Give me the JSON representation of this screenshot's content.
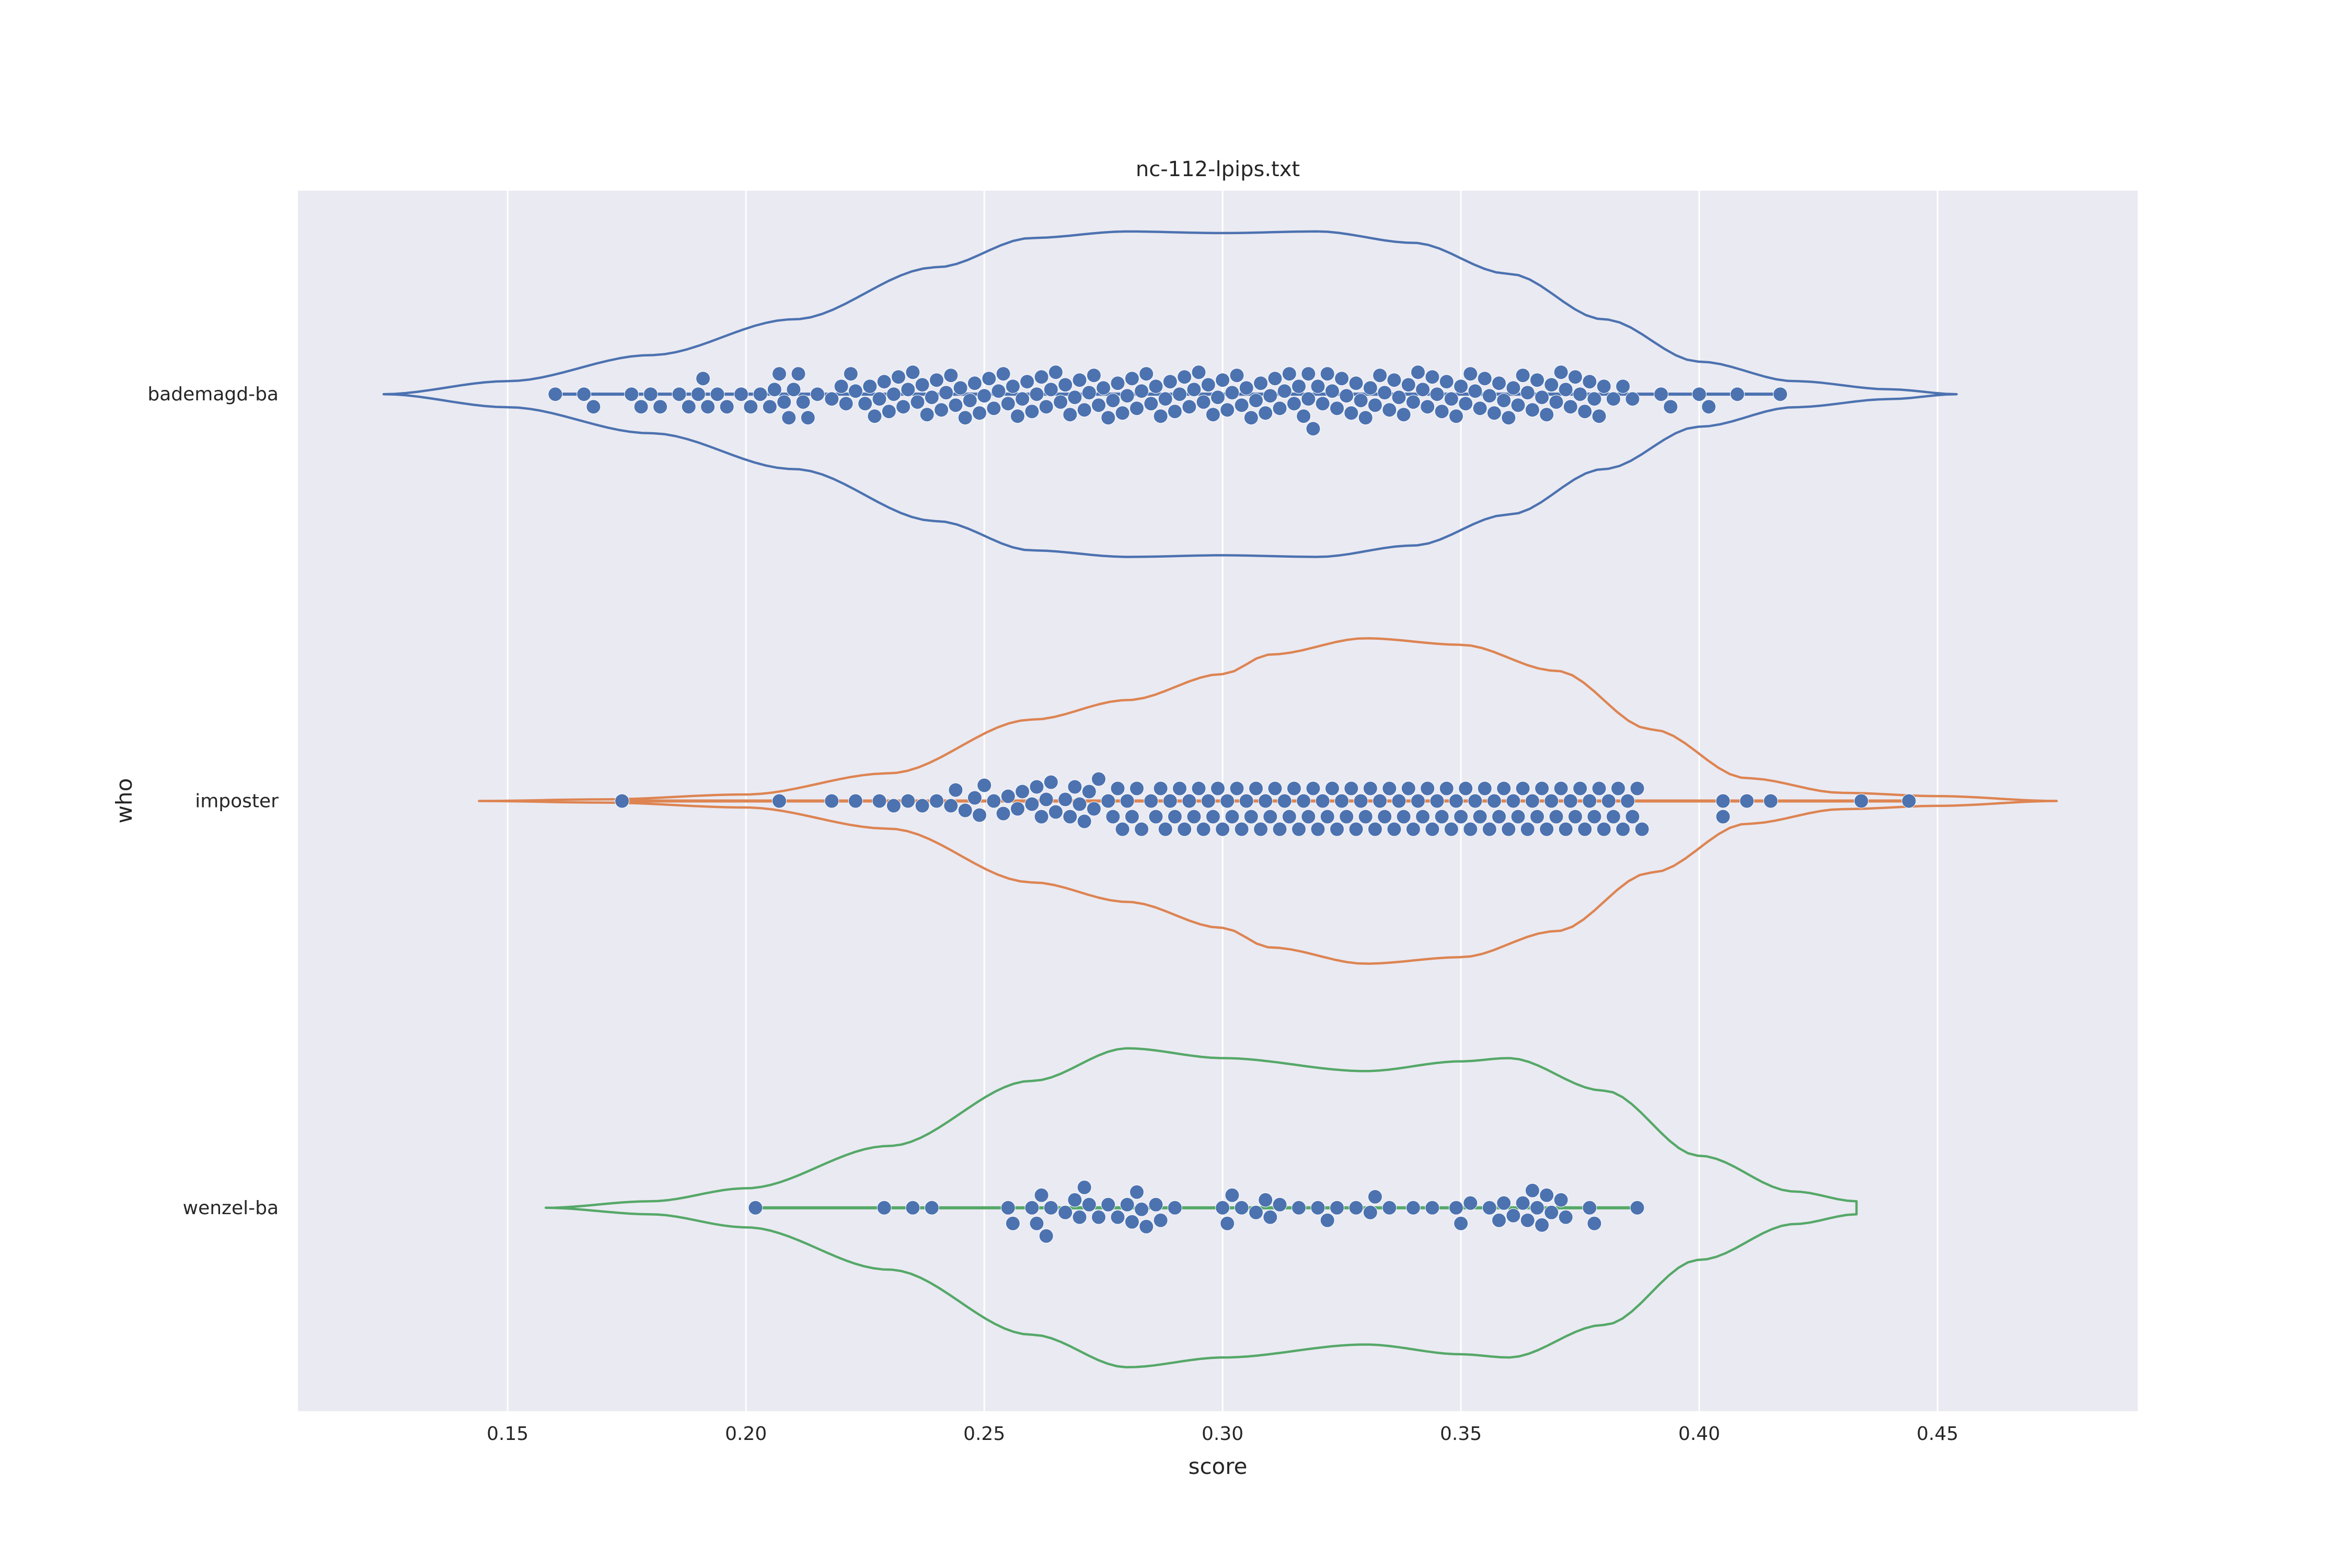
{
  "chart_data": {
    "type": "violin",
    "title": "nc-112-lpips.txt",
    "xlabel": "score",
    "ylabel": "who",
    "xlim": [
      0.106,
      0.492
    ],
    "xticks": [
      0.15,
      0.2,
      0.25,
      0.3,
      0.35,
      0.4,
      0.45
    ],
    "xtick_labels": [
      "0.15",
      "0.20",
      "0.25",
      "0.30",
      "0.35",
      "0.40",
      "0.45"
    ],
    "grid": true,
    "background": "#eaeaf2",
    "point_color": "#4c72b0",
    "categories": [
      "bademagd-ba",
      "imposter",
      "wenzel-ba"
    ],
    "series": [
      {
        "name": "bademagd-ba",
        "color": "#4c72b0",
        "violin_range": [
          0.124,
          0.454
        ],
        "density": [
          [
            0.124,
            0.0
          ],
          [
            0.15,
            0.08
          ],
          [
            0.18,
            0.24
          ],
          [
            0.21,
            0.46
          ],
          [
            0.24,
            0.78
          ],
          [
            0.26,
            0.96
          ],
          [
            0.28,
            1.0
          ],
          [
            0.3,
            0.99
          ],
          [
            0.32,
            1.0
          ],
          [
            0.34,
            0.93
          ],
          [
            0.36,
            0.74
          ],
          [
            0.38,
            0.46
          ],
          [
            0.4,
            0.2
          ],
          [
            0.42,
            0.08
          ],
          [
            0.44,
            0.03
          ],
          [
            0.454,
            0.0
          ]
        ],
        "points": [
          0.16,
          0.166,
          0.168,
          0.176,
          0.178,
          0.18,
          0.182,
          0.186,
          0.188,
          0.19,
          0.191,
          0.192,
          0.194,
          0.196,
          0.199,
          0.201,
          0.203,
          0.205,
          0.206,
          0.207,
          0.208,
          0.209,
          0.21,
          0.211,
          0.212,
          0.213,
          0.215,
          0.218,
          0.22,
          0.221,
          0.222,
          0.223,
          0.225,
          0.226,
          0.227,
          0.228,
          0.229,
          0.23,
          0.231,
          0.232,
          0.233,
          0.234,
          0.235,
          0.236,
          0.237,
          0.238,
          0.239,
          0.24,
          0.241,
          0.242,
          0.243,
          0.244,
          0.245,
          0.246,
          0.247,
          0.248,
          0.249,
          0.25,
          0.251,
          0.252,
          0.253,
          0.254,
          0.255,
          0.256,
          0.257,
          0.258,
          0.259,
          0.26,
          0.261,
          0.262,
          0.263,
          0.264,
          0.265,
          0.266,
          0.267,
          0.268,
          0.269,
          0.27,
          0.271,
          0.272,
          0.273,
          0.274,
          0.275,
          0.276,
          0.277,
          0.278,
          0.279,
          0.28,
          0.281,
          0.282,
          0.283,
          0.284,
          0.285,
          0.286,
          0.287,
          0.288,
          0.289,
          0.29,
          0.291,
          0.292,
          0.293,
          0.294,
          0.295,
          0.296,
          0.297,
          0.298,
          0.299,
          0.3,
          0.301,
          0.302,
          0.303,
          0.304,
          0.305,
          0.306,
          0.307,
          0.308,
          0.309,
          0.31,
          0.311,
          0.312,
          0.313,
          0.314,
          0.315,
          0.316,
          0.317,
          0.318,
          0.318,
          0.319,
          0.32,
          0.321,
          0.322,
          0.323,
          0.324,
          0.325,
          0.326,
          0.327,
          0.328,
          0.329,
          0.33,
          0.331,
          0.332,
          0.333,
          0.334,
          0.335,
          0.336,
          0.337,
          0.338,
          0.339,
          0.34,
          0.341,
          0.342,
          0.343,
          0.344,
          0.345,
          0.346,
          0.347,
          0.348,
          0.349,
          0.35,
          0.351,
          0.352,
          0.353,
          0.354,
          0.355,
          0.356,
          0.357,
          0.358,
          0.359,
          0.36,
          0.361,
          0.362,
          0.363,
          0.364,
          0.365,
          0.366,
          0.367,
          0.368,
          0.369,
          0.37,
          0.371,
          0.372,
          0.373,
          0.374,
          0.375,
          0.376,
          0.377,
          0.378,
          0.379,
          0.38,
          0.382,
          0.384,
          0.386,
          0.392,
          0.394,
          0.4,
          0.402,
          0.408,
          0.417
        ]
      },
      {
        "name": "imposter",
        "color": "#dd8452",
        "violin_range": [
          0.144,
          0.475
        ],
        "density": [
          [
            0.144,
            0.0
          ],
          [
            0.17,
            0.01
          ],
          [
            0.2,
            0.04
          ],
          [
            0.23,
            0.17
          ],
          [
            0.26,
            0.5
          ],
          [
            0.28,
            0.62
          ],
          [
            0.3,
            0.78
          ],
          [
            0.31,
            0.9
          ],
          [
            0.33,
            1.0
          ],
          [
            0.35,
            0.96
          ],
          [
            0.37,
            0.8
          ],
          [
            0.39,
            0.44
          ],
          [
            0.41,
            0.14
          ],
          [
            0.43,
            0.05
          ],
          [
            0.45,
            0.03
          ],
          [
            0.475,
            0.0
          ]
        ],
        "points": [
          0.174,
          0.207,
          0.218,
          0.223,
          0.228,
          0.231,
          0.234,
          0.237,
          0.24,
          0.243,
          0.244,
          0.246,
          0.248,
          0.249,
          0.25,
          0.252,
          0.254,
          0.255,
          0.257,
          0.258,
          0.26,
          0.261,
          0.262,
          0.263,
          0.264,
          0.265,
          0.267,
          0.268,
          0.269,
          0.27,
          0.271,
          0.272,
          0.273,
          0.274,
          0.276,
          0.277,
          0.278,
          0.279,
          0.28,
          0.281,
          0.282,
          0.283,
          0.285,
          0.286,
          0.287,
          0.288,
          0.289,
          0.29,
          0.291,
          0.292,
          0.293,
          0.294,
          0.295,
          0.296,
          0.297,
          0.298,
          0.299,
          0.3,
          0.301,
          0.302,
          0.303,
          0.304,
          0.305,
          0.306,
          0.307,
          0.308,
          0.309,
          0.31,
          0.311,
          0.312,
          0.313,
          0.314,
          0.315,
          0.316,
          0.317,
          0.318,
          0.319,
          0.32,
          0.321,
          0.322,
          0.323,
          0.324,
          0.325,
          0.326,
          0.327,
          0.328,
          0.329,
          0.33,
          0.331,
          0.332,
          0.333,
          0.334,
          0.335,
          0.336,
          0.337,
          0.338,
          0.339,
          0.34,
          0.341,
          0.342,
          0.343,
          0.344,
          0.345,
          0.346,
          0.347,
          0.348,
          0.349,
          0.35,
          0.351,
          0.352,
          0.353,
          0.354,
          0.355,
          0.356,
          0.357,
          0.358,
          0.359,
          0.36,
          0.361,
          0.362,
          0.363,
          0.364,
          0.365,
          0.366,
          0.367,
          0.368,
          0.369,
          0.37,
          0.371,
          0.372,
          0.373,
          0.374,
          0.375,
          0.376,
          0.377,
          0.378,
          0.379,
          0.38,
          0.381,
          0.382,
          0.383,
          0.384,
          0.385,
          0.386,
          0.387,
          0.388,
          0.405,
          0.405,
          0.41,
          0.415,
          0.434,
          0.444
        ]
      },
      {
        "name": "wenzel-ba",
        "color": "#55a868",
        "violin_range": [
          0.158,
          0.433
        ],
        "density": [
          [
            0.158,
            0.0
          ],
          [
            0.18,
            0.04
          ],
          [
            0.2,
            0.12
          ],
          [
            0.23,
            0.38
          ],
          [
            0.26,
            0.78
          ],
          [
            0.28,
            0.98
          ],
          [
            0.3,
            0.92
          ],
          [
            0.33,
            0.84
          ],
          [
            0.35,
            0.9
          ],
          [
            0.36,
            0.92
          ],
          [
            0.38,
            0.72
          ],
          [
            0.4,
            0.32
          ],
          [
            0.42,
            0.1
          ],
          [
            0.433,
            0.04
          ]
        ],
        "points": [
          0.202,
          0.229,
          0.235,
          0.239,
          0.255,
          0.256,
          0.26,
          0.261,
          0.262,
          0.263,
          0.264,
          0.267,
          0.269,
          0.27,
          0.271,
          0.272,
          0.274,
          0.276,
          0.278,
          0.28,
          0.281,
          0.282,
          0.283,
          0.284,
          0.286,
          0.287,
          0.29,
          0.3,
          0.301,
          0.302,
          0.304,
          0.307,
          0.309,
          0.31,
          0.312,
          0.316,
          0.32,
          0.322,
          0.324,
          0.328,
          0.331,
          0.332,
          0.335,
          0.34,
          0.344,
          0.349,
          0.35,
          0.352,
          0.356,
          0.358,
          0.359,
          0.361,
          0.363,
          0.364,
          0.365,
          0.366,
          0.367,
          0.368,
          0.369,
          0.371,
          0.372,
          0.377,
          0.378,
          0.387
        ]
      }
    ]
  }
}
